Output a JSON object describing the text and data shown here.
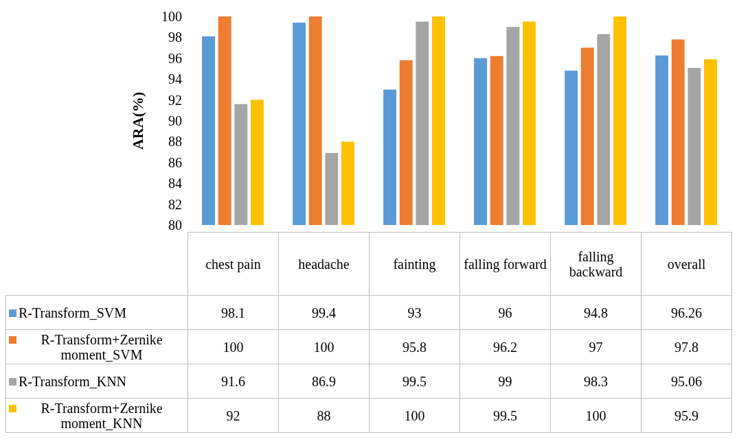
{
  "chart_data": {
    "type": "bar",
    "ylabel": "ARA(%)",
    "categories": [
      "chest pain",
      "headache",
      "fainting",
      "falling forward",
      "falling backward",
      "overall"
    ],
    "series": [
      {
        "name": "R-Transform_SVM",
        "color": "#5b9bd5",
        "values": [
          98.1,
          99.4,
          93,
          96,
          94.8,
          96.26
        ]
      },
      {
        "name": "R-Transform+Zernike moment_SVM",
        "color": "#ed7d31",
        "values": [
          100,
          100,
          95.8,
          96.2,
          97,
          97.8
        ]
      },
      {
        "name": "R-Transform_KNN",
        "color": "#a5a5a5",
        "values": [
          91.6,
          86.9,
          99.5,
          99,
          98.3,
          95.06
        ]
      },
      {
        "name": "R-Transform+Zernike moment_KNN",
        "color": "#ffc000",
        "values": [
          92,
          88,
          100,
          99.5,
          100,
          95.9
        ]
      }
    ],
    "ylim": [
      80,
      100
    ],
    "yticks": [
      80,
      82,
      84,
      86,
      88,
      90,
      92,
      94,
      96,
      98,
      100
    ],
    "data_labels": true,
    "legend": "bottom"
  }
}
